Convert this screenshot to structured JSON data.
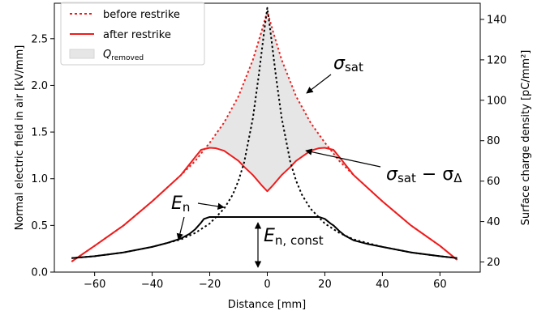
{
  "chart_data": {
    "type": "line",
    "xlabel": "Distance [mm]",
    "ylabel": "Normal electric field in air [kV/mm]",
    "ylabel_right": "Surface charge density [pC/mm²]",
    "xlim": [
      -74,
      74
    ],
    "ylim": [
      0,
      2.88
    ],
    "ylim_right": [
      15,
      148
    ],
    "xticks": [
      -60,
      -40,
      -20,
      0,
      20,
      40,
      60
    ],
    "xtick_labels": [
      "−60",
      "−40",
      "−20",
      "0",
      "20",
      "40",
      "60"
    ],
    "yticks": [
      0.0,
      0.5,
      1.0,
      1.5,
      2.0,
      2.5
    ],
    "ytick_labels": [
      "0.0",
      "0.5",
      "1.0",
      "1.5",
      "2.0",
      "2.5"
    ],
    "yticks_right": [
      20,
      40,
      60,
      80,
      100,
      120,
      140
    ],
    "grid": false,
    "legend": {
      "placement": "top-left",
      "entries": [
        {
          "label": "before restrike",
          "style": "dotted",
          "color": "#ee1c1c"
        },
        {
          "label": "after restrike",
          "style": "solid",
          "color": "#ee1c1c"
        },
        {
          "label_main": "Q",
          "label_sub": "removed",
          "style": "patch",
          "color": "#e6e6e6"
        }
      ]
    },
    "annotations": [
      {
        "main": "σ",
        "sub": "sat",
        "suffix": ""
      },
      {
        "main": "σ",
        "sub": "sat",
        "suffix": " − σ",
        "suffix_sub": "Δ"
      },
      {
        "main": "E",
        "sub": "n"
      },
      {
        "main": "E",
        "sub": "n, const"
      }
    ],
    "series": [
      {
        "name": "before restrike",
        "axis": "right",
        "color": "#ee1c1c",
        "style": "dotted",
        "x": [
          -68,
          -60,
          -50,
          -40,
          -30,
          -25,
          -22,
          -20,
          -15,
          -10,
          -5,
          -2,
          0,
          2,
          5,
          10,
          15,
          20,
          22,
          25,
          30,
          40,
          50,
          60,
          66
        ],
        "y": [
          20.2,
          28,
          38,
          50,
          63,
          70,
          75.5,
          79,
          89,
          102,
          120,
          134,
          144,
          134,
          120,
          102,
          89,
          79,
          75.5,
          70,
          63,
          50,
          38,
          28,
          21
        ]
      },
      {
        "name": "after restrike",
        "axis": "right",
        "color": "#ee1c1c",
        "style": "solid",
        "x": [
          -68,
          -60,
          -50,
          -40,
          -30,
          -25,
          -23,
          -20,
          -18,
          -15,
          -12,
          -10,
          -8,
          -5,
          -2,
          0,
          2,
          5,
          8,
          10,
          12,
          15,
          18,
          20,
          23,
          25,
          30,
          40,
          50,
          60,
          66
        ],
        "y": [
          20.2,
          28,
          38,
          50,
          63,
          72,
          75.5,
          76.5,
          76.3,
          75,
          72,
          70,
          67,
          63,
          58,
          55,
          58,
          63,
          67,
          70,
          72,
          75,
          76.3,
          76.5,
          75.5,
          72,
          63,
          50,
          38,
          28,
          21
        ]
      },
      {
        "name": "E_n",
        "axis": "left",
        "color": "#000000",
        "style": "dotted",
        "x": [
          -68,
          -60,
          -50,
          -40,
          -30,
          -25,
          -20,
          -15,
          -12,
          -10,
          -8,
          -5,
          -3,
          -1,
          0,
          1,
          3,
          5,
          8,
          10,
          12,
          15,
          20,
          25,
          30,
          40,
          50,
          60,
          66
        ],
        "y": [
          0.15,
          0.17,
          0.21,
          0.27,
          0.35,
          0.42,
          0.52,
          0.68,
          0.83,
          0.98,
          1.18,
          1.65,
          2.1,
          2.6,
          2.83,
          2.6,
          2.1,
          1.65,
          1.18,
          0.98,
          0.83,
          0.68,
          0.52,
          0.42,
          0.35,
          0.27,
          0.21,
          0.17,
          0.15
        ]
      },
      {
        "name": "E_n_after",
        "axis": "left",
        "color": "#000000",
        "style": "solid",
        "x": [
          -68,
          -60,
          -50,
          -40,
          -35,
          -30,
          -27,
          -25,
          -23,
          -22,
          -20,
          0,
          18,
          20,
          22,
          23,
          25,
          27,
          30,
          35,
          40,
          50,
          60,
          66
        ],
        "y": [
          0.15,
          0.17,
          0.21,
          0.27,
          0.31,
          0.36,
          0.41,
          0.46,
          0.53,
          0.57,
          0.59,
          0.59,
          0.59,
          0.57,
          0.52,
          0.5,
          0.44,
          0.39,
          0.34,
          0.3,
          0.27,
          0.21,
          0.17,
          0.15
        ]
      }
    ]
  }
}
